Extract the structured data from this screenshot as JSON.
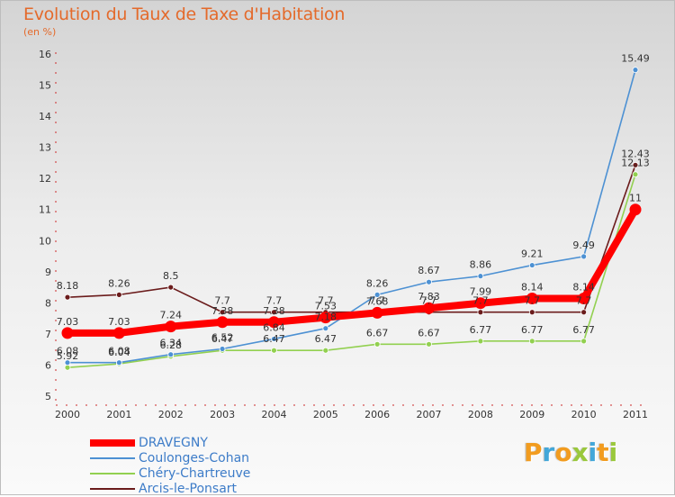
{
  "chart_title": "Evolution du Taux de Taxe d'Habitation",
  "chart_unit": "(en %)",
  "brand": {
    "letters": [
      "P",
      "r",
      "o",
      "x",
      "i",
      "t",
      "i"
    ],
    "colors": [
      "#f29c1f",
      "#43a7d9",
      "#f29c1f",
      "#9ac83c",
      "#43a7d9",
      "#f29c1f",
      "#9ac83c"
    ]
  },
  "chart_data": {
    "type": "line",
    "title": "Evolution du Taux de Taxe d'Habitation",
    "ylabel": "(en %)",
    "xlabel": "",
    "x": [
      "2000",
      "2001",
      "2002",
      "2003",
      "2004",
      "2005",
      "2006",
      "2007",
      "2008",
      "2009",
      "2010",
      "2011"
    ],
    "ylim": [
      5,
      16
    ],
    "yticks": [
      "5",
      "6",
      "7",
      "8",
      "9",
      "10",
      "11",
      "12",
      "13",
      "14",
      "15",
      "16"
    ],
    "grid": false,
    "legend": "bottom-left",
    "series": [
      {
        "name": "Arcis-le-Ponsart",
        "color": "#6b1c1c",
        "values": [
          8.18,
          8.26,
          8.5,
          7.7,
          7.7,
          7.7,
          7.7,
          7.7,
          7.7,
          7.7,
          7.7,
          12.43
        ],
        "labels": [
          "8.18",
          "8.26",
          "8.5",
          "7.7",
          "7.7",
          "7.7",
          "7.7",
          "7.7",
          "7.7",
          "7.7",
          "7.7",
          "12.43"
        ]
      },
      {
        "name": "Chéry-Chartreuve",
        "color": "#92d050",
        "values": [
          5.92,
          6.04,
          6.28,
          6.47,
          6.47,
          6.47,
          6.67,
          6.67,
          6.77,
          6.77,
          6.77,
          12.13
        ],
        "labels": [
          "5.92",
          "6.04",
          "6.28",
          "6.47",
          "6.47",
          "6.47",
          "6.67",
          "6.67",
          "6.77",
          "6.77",
          "6.77",
          "12.13"
        ]
      },
      {
        "name": "Coulonges-Cohan",
        "color": "#4d91d3",
        "values": [
          6.08,
          6.08,
          6.34,
          6.52,
          6.84,
          7.18,
          8.26,
          8.67,
          8.86,
          9.21,
          9.49,
          15.49
        ],
        "labels": [
          "6.08",
          "6.08",
          "6.34",
          "6.52",
          "6.84",
          "7.18",
          "8.26",
          "8.67",
          "8.86",
          "9.21",
          "9.49",
          "15.49"
        ]
      },
      {
        "name": "DRAVEGNY",
        "color": "#ff0000",
        "values": [
          7.03,
          7.03,
          7.24,
          7.38,
          7.38,
          7.53,
          7.68,
          7.83,
          7.99,
          8.14,
          8.14,
          11
        ],
        "labels": [
          "7.03",
          "7.03",
          "7.24",
          "7.38",
          "7.38",
          "7.53",
          "7.68",
          "7.83",
          "7.99",
          "8.14",
          "8.14",
          "11"
        ]
      }
    ],
    "legend_order": [
      "DRAVEGNY",
      "Coulonges-Cohan",
      "Chéry-Chartreuve",
      "Arcis-le-Ponsart"
    ]
  }
}
